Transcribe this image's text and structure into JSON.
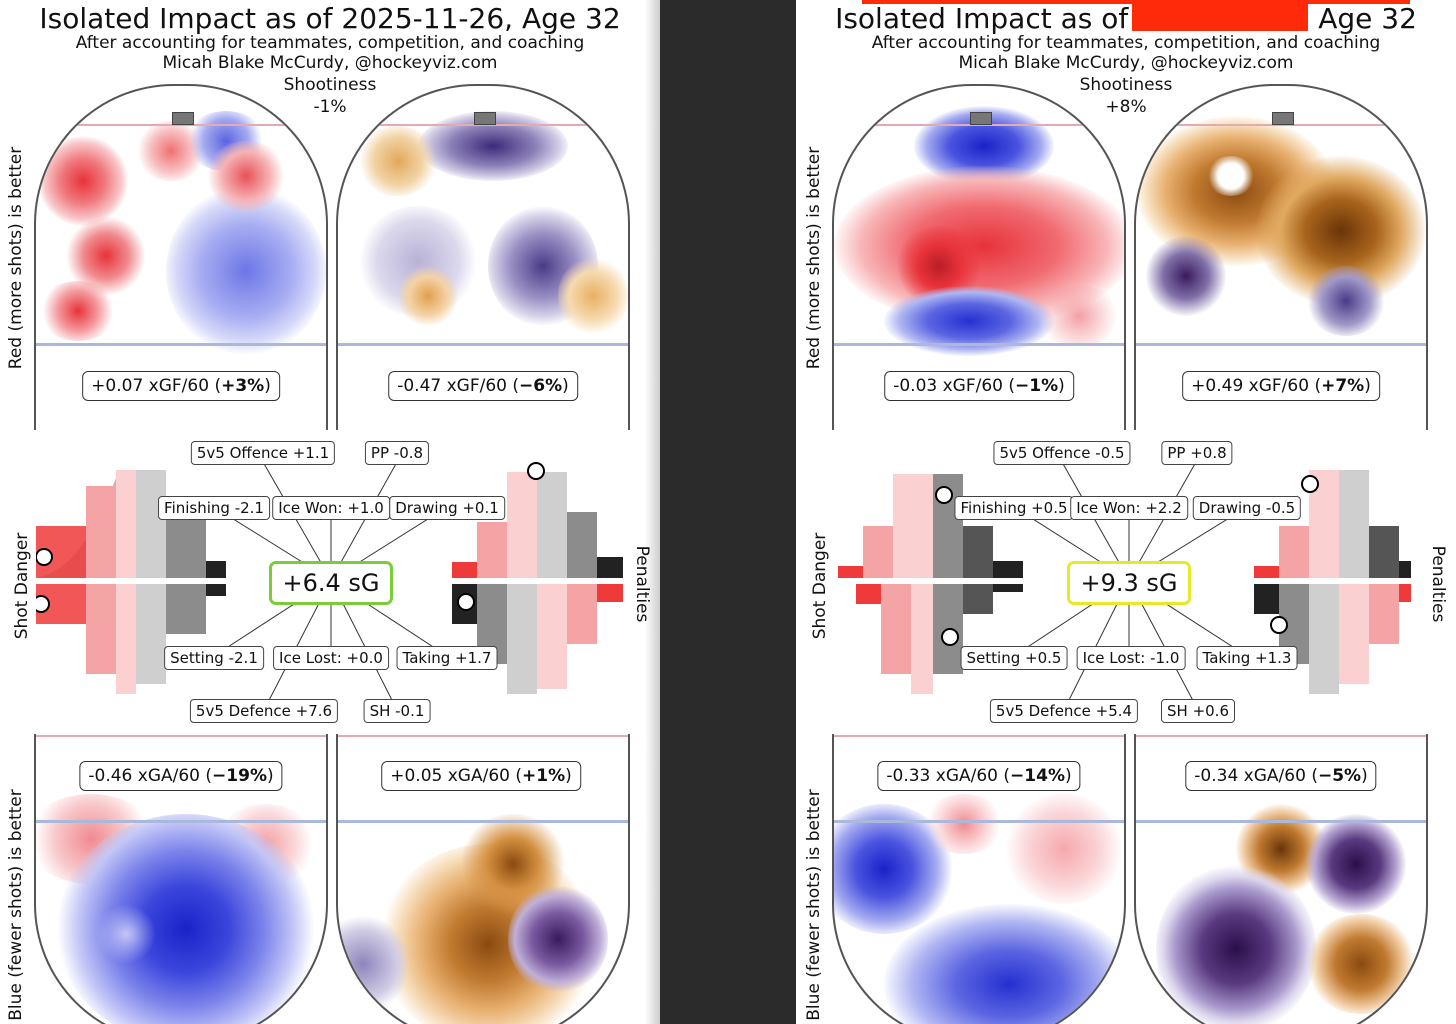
{
  "left": {
    "title": "Isolated Impact as of 2025-11-26, Age 32",
    "title_before_redaction": "",
    "subtitle": "After accounting for teammates, competition, and coaching",
    "author": "Micah Blake McCurdy, @hockeyviz.com",
    "shootiness_label": "Shootiness",
    "shootiness_value": "-1%",
    "offence_axis_label": "Red (more shots) is better",
    "defence_axis_label": "Blue (fewer shots) is better",
    "shot_danger_label": "Shot Danger",
    "penalties_label": "Penalties",
    "sg_total": "+6.4 sG",
    "sg_border_color": "#7acc3a",
    "xgf_5v5": {
      "text": "+0.07 xGF/60 (",
      "pct": "+3%",
      "close": ")"
    },
    "xgf_pp": {
      "text": "-0.47 xGF/60 (",
      "pct": "−6%",
      "close": ")"
    },
    "xga_5v5": {
      "text": "-0.46 xGA/60 (",
      "pct": "−19%",
      "close": ")"
    },
    "xga_pk": {
      "text": "+0.05 xGA/60 (",
      "pct": "+1%",
      "close": ")"
    },
    "components": {
      "offence_5v5": "5v5 Offence +1.1",
      "pp": "PP -0.8",
      "finishing": "Finishing -2.1",
      "ice_won": "Ice Won: +1.0",
      "drawing": "Drawing +0.1",
      "setting": "Setting -2.1",
      "ice_lost": "Ice Lost: +0.0",
      "taking": "Taking +1.7",
      "defence_5v5": "5v5 Defence +7.6",
      "sh": "SH -0.1"
    }
  },
  "right": {
    "title_before_redaction": "Isolated Impact as of",
    "title_after_redaction": "Age 32",
    "subtitle": "After accounting for teammates, competition, and coaching",
    "author": "Micah Blake McCurdy, @hockeyviz.com",
    "shootiness_label": "Shootiness",
    "shootiness_value": "+8%",
    "offence_axis_label": "Red (more shots) is better",
    "defence_axis_label": "Blue (fewer shots) is better",
    "shot_danger_label": "Shot Danger",
    "penalties_label": "Penalties",
    "sg_total": "+9.3 sG",
    "sg_border_color": "#e8e82a",
    "xgf_5v5": {
      "text": "-0.03 xGF/60 (",
      "pct": "−1%",
      "close": ")"
    },
    "xgf_pp": {
      "text": "+0.49 xGF/60 (",
      "pct": "+7%",
      "close": ")"
    },
    "xga_5v5": {
      "text": "-0.33 xGA/60 (",
      "pct": "−14%",
      "close": ")"
    },
    "xga_pk": {
      "text": "-0.34 xGA/60 (",
      "pct": "−5%",
      "close": ")"
    },
    "components": {
      "offence_5v5": "5v5 Offence -0.5",
      "pp": "PP +0.8",
      "finishing": "Finishing +0.5",
      "ice_won": "Ice Won: +2.2",
      "drawing": "Drawing -0.5",
      "setting": "Setting +0.5",
      "ice_lost": "Ice Lost: -1.0",
      "taking": "Taking +1.3",
      "defence_5v5": "5v5 Defence +5.4",
      "sh": "SH +0.6"
    }
  },
  "colors": {
    "offence_red": "#e8323a",
    "defence_blue": "#2b3bd6",
    "pp_orange": "#c77a1c",
    "pk_purple": "#3a1a5e",
    "redaction": "#ff2a0a"
  },
  "chart_data": [
    {
      "type": "table",
      "player": "left",
      "title": "Isolated Impact as of 2025-11-26, Age 32",
      "sg_total": 6.4,
      "shootiness_pct": -1,
      "xGF60_5v5": 0.07,
      "xGF60_5v5_pct": 3,
      "xGF60_pp": -0.47,
      "xGF60_pp_pct": -6,
      "xGA60_5v5": -0.46,
      "xGA60_5v5_pct": -19,
      "xGA60_pk": 0.05,
      "xGA60_pk_pct": 1,
      "components": {
        "5v5 Offence": 1.1,
        "PP": -0.8,
        "Finishing": -2.1,
        "Ice Won": 1.0,
        "Drawing": 0.1,
        "Setting": -2.1,
        "Ice Lost": 0.0,
        "Taking": 1.7,
        "5v5 Defence": 7.6,
        "SH": -0.1
      }
    },
    {
      "type": "table",
      "player": "right",
      "sg_total": 9.3,
      "shootiness_pct": 8,
      "xGF60_5v5": -0.03,
      "xGF60_5v5_pct": -1,
      "xGF60_pp": 0.49,
      "xGF60_pp_pct": 7,
      "xGA60_5v5": -0.33,
      "xGA60_5v5_pct": -14,
      "xGA60_pk": -0.34,
      "xGA60_pk_pct": -5,
      "components": {
        "5v5 Offence": -0.5,
        "PP": 0.8,
        "Finishing": 0.5,
        "Ice Won": 2.2,
        "Drawing": -0.5,
        "Setting": 0.5,
        "Ice Lost": -1.0,
        "Taking": 1.3,
        "5v5 Defence": 5.4,
        "SH": 0.6
      }
    }
  ]
}
